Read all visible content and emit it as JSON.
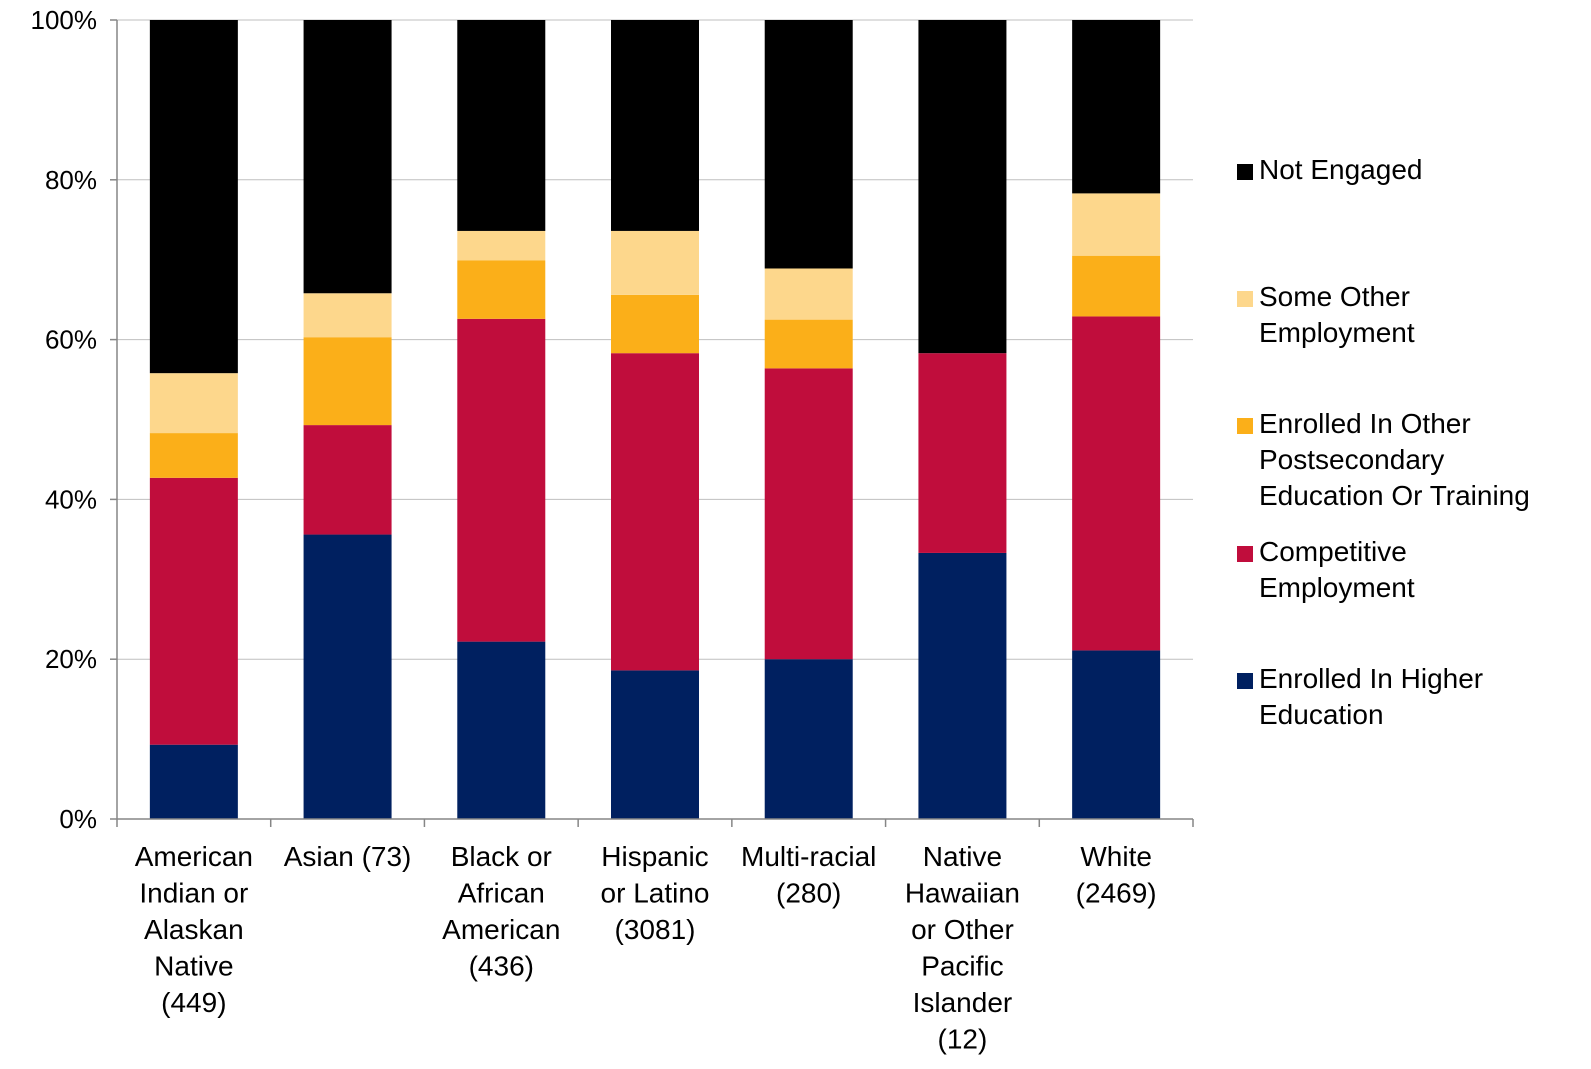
{
  "chart_data": {
    "type": "bar",
    "stacked": true,
    "percent_stacked": true,
    "categories": [
      "American\nIndian or\nAlaskan\nNative\n(449)",
      "Asian (73)",
      "Black or\nAfrican\nAmerican\n(436)",
      "Hispanic\nor Latino\n(3081)",
      "Multi-racial\n(280)",
      "Native\nHawaiian\nor Other\nPacific\nIslander\n(12)",
      "White\n(2469)"
    ],
    "series": [
      {
        "name": "Enrolled In Higher Education",
        "color": "#002060",
        "values": [
          9.3,
          35.6,
          22.2,
          18.6,
          20.0,
          33.3,
          21.1
        ]
      },
      {
        "name": "Competitive Employment",
        "color": "#C00D3C",
        "values": [
          33.4,
          13.7,
          40.4,
          39.7,
          36.4,
          25.0,
          41.8
        ]
      },
      {
        "name": "Enrolled In Other Postsecondary Education Or Training",
        "color": "#FBAF19",
        "values": [
          5.6,
          11.0,
          7.3,
          7.3,
          6.1,
          0.0,
          7.6
        ]
      },
      {
        "name": "Some Other Employment",
        "color": "#FDD78C",
        "values": [
          7.5,
          5.5,
          3.7,
          8.0,
          6.4,
          0.0,
          7.8
        ]
      },
      {
        "name": "Not Engaged",
        "color": "#000000",
        "values": [
          44.2,
          34.2,
          26.4,
          26.4,
          31.1,
          41.7,
          21.7
        ]
      }
    ],
    "yticks": [
      "0%",
      "20%",
      "40%",
      "60%",
      "80%",
      "100%"
    ],
    "ylim": [
      0,
      100
    ],
    "grid": true,
    "legend_position": "right",
    "legend": [
      {
        "label": "Not Engaged",
        "color": "#000000"
      },
      {
        "label": "Some Other\nEmployment",
        "color": "#FDD78C"
      },
      {
        "label": "Enrolled In Other\nPostsecondary\nEducation Or Training",
        "color": "#FBAF19"
      },
      {
        "label": "Competitive\nEmployment",
        "color": "#C00D3C"
      },
      {
        "label": "Enrolled In Higher\nEducation",
        "color": "#002060"
      }
    ],
    "gridline_color": "#BFBFBF",
    "axis_color": "#868686"
  }
}
